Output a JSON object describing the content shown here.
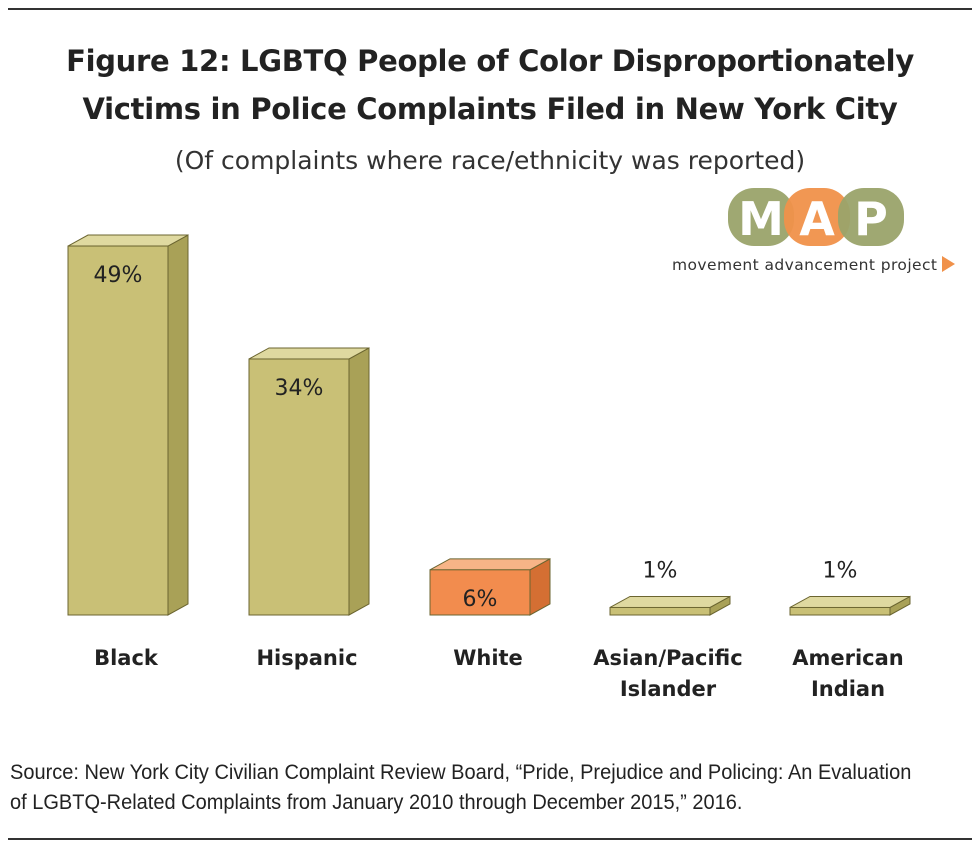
{
  "title_line1": "Figure 12: LGBTQ People of Color Disproportionately",
  "title_line2": "Victims in Police Complaints Filed in New York City",
  "subtitle": "(Of complaints where race/ethnicity was reported)",
  "logo": {
    "letters": [
      "M",
      "A",
      "P"
    ],
    "tagline": "movement advancement project"
  },
  "source_line1": "Source: New York City Civilian Complaint Review Board, “Pride, Prejudice and Policing: An Evaluation",
  "source_line2": "of LGBTQ-Related Complaints from January 2010 through December 2015,” 2016.",
  "colors": {
    "olive_front": "#c9c076",
    "olive_side": "#a9a157",
    "olive_top": "#dfd9a0",
    "orange_front": "#f28c4e",
    "orange_side": "#d46f33",
    "orange_top": "#f7b487",
    "logo_green": "#9aa36a",
    "logo_orange": "#f0914a"
  },
  "chart_data": {
    "type": "bar",
    "title": "Figure 12: LGBTQ People of Color Disproportionately Victims in Police Complaints Filed in New York City",
    "categories": [
      "Black",
      "Hispanic",
      "White",
      "Asian/Pacific Islander",
      "American Indian"
    ],
    "category_lines": [
      [
        "Black"
      ],
      [
        "Hispanic"
      ],
      [
        "White"
      ],
      [
        "Asian/Pacific",
        "Islander"
      ],
      [
        "American",
        "Indian"
      ]
    ],
    "values": [
      49,
      34,
      6,
      1,
      1
    ],
    "labels": [
      "49%",
      "34%",
      "6%",
      "1%",
      "1%"
    ],
    "highlight": [
      false,
      false,
      true,
      false,
      false
    ],
    "unit": "%",
    "ylim": [
      0,
      50
    ],
    "grid": false
  }
}
